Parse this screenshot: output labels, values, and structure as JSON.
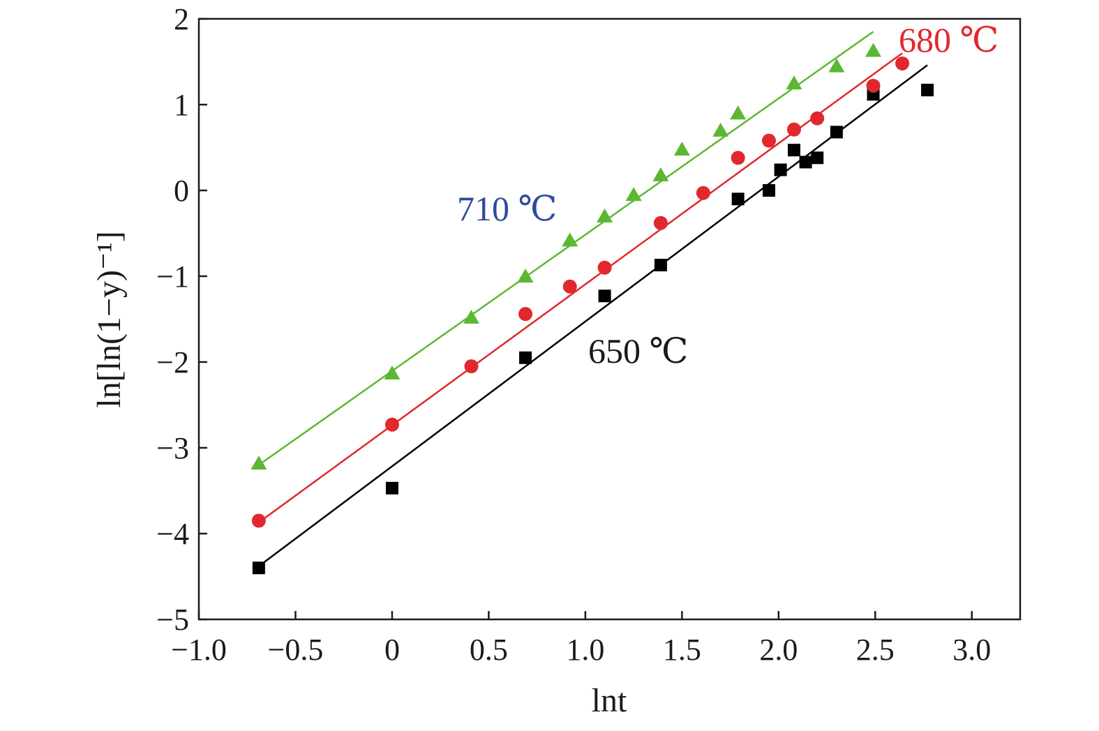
{
  "chart_data": {
    "type": "scatter",
    "title": "",
    "xlabel": "lnt",
    "ylabel": "ln[ln(1−y)⁻¹]",
    "xlim": [
      -1.0,
      3.25
    ],
    "ylim": [
      -5,
      2
    ],
    "x_ticks": [
      -1.0,
      -0.5,
      0,
      0.5,
      1.0,
      1.5,
      2.0,
      2.5,
      3.0
    ],
    "x_tick_labels": [
      "−1.0",
      "−0.5",
      "0",
      "0.5",
      "1.0",
      "1.5",
      "2.0",
      "2.5",
      "3.0"
    ],
    "y_ticks": [
      2,
      1,
      0,
      -1,
      -2,
      -3,
      -4,
      -5
    ],
    "y_tick_labels": [
      "2",
      "1",
      "0",
      "−1",
      "−2",
      "−3",
      "−4",
      "−5"
    ],
    "grid": false,
    "series": [
      {
        "name": "650 ℃",
        "color": "#000000",
        "marker": "square",
        "points": [
          [
            -0.69,
            -4.4
          ],
          [
            0.0,
            -3.47
          ],
          [
            0.69,
            -1.95
          ],
          [
            1.1,
            -1.23
          ],
          [
            1.39,
            -0.87
          ],
          [
            1.79,
            -0.1
          ],
          [
            1.95,
            0.0
          ],
          [
            2.01,
            0.24
          ],
          [
            2.08,
            0.47
          ],
          [
            2.14,
            0.33
          ],
          [
            2.2,
            0.38
          ],
          [
            2.3,
            0.68
          ],
          [
            2.49,
            1.12
          ],
          [
            2.77,
            1.17
          ]
        ],
        "fit": [
          [
            -0.69,
            -4.38
          ],
          [
            2.77,
            1.46
          ]
        ]
      },
      {
        "name": "680 ℃",
        "color": "#e0282e",
        "marker": "circle",
        "points": [
          [
            -0.69,
            -3.85
          ],
          [
            0.0,
            -2.73
          ],
          [
            0.41,
            -2.05
          ],
          [
            0.69,
            -1.44
          ],
          [
            0.92,
            -1.12
          ],
          [
            1.1,
            -0.9
          ],
          [
            1.39,
            -0.38
          ],
          [
            1.61,
            -0.03
          ],
          [
            1.79,
            0.38
          ],
          [
            1.95,
            0.58
          ],
          [
            2.08,
            0.71
          ],
          [
            2.2,
            0.84
          ],
          [
            2.49,
            1.22
          ],
          [
            2.64,
            1.48
          ]
        ],
        "fit": [
          [
            -0.69,
            -3.87
          ],
          [
            2.64,
            1.6
          ]
        ]
      },
      {
        "name": "710 ℃",
        "color": "#5cb832",
        "marker": "triangle",
        "points": [
          [
            -0.69,
            -3.18
          ],
          [
            0.0,
            -2.13
          ],
          [
            0.41,
            -1.48
          ],
          [
            0.69,
            -1.0
          ],
          [
            0.92,
            -0.58
          ],
          [
            1.1,
            -0.3
          ],
          [
            1.25,
            -0.05
          ],
          [
            1.39,
            0.18
          ],
          [
            1.5,
            0.48
          ],
          [
            1.7,
            0.7
          ],
          [
            1.79,
            0.9
          ],
          [
            2.08,
            1.25
          ],
          [
            2.3,
            1.45
          ],
          [
            2.49,
            1.63
          ]
        ],
        "fit": [
          [
            -0.69,
            -3.2
          ],
          [
            2.49,
            1.85
          ]
        ]
      }
    ],
    "annotations": [
      {
        "text": "680 ℃",
        "color": "#e0282e",
        "series": "680 ℃"
      },
      {
        "text": "710 ℃",
        "color": "#2e4a9c",
        "series": "710 ℃"
      },
      {
        "text": "650 ℃",
        "color": "#1a1a1a",
        "series": "650 ℃"
      }
    ]
  }
}
